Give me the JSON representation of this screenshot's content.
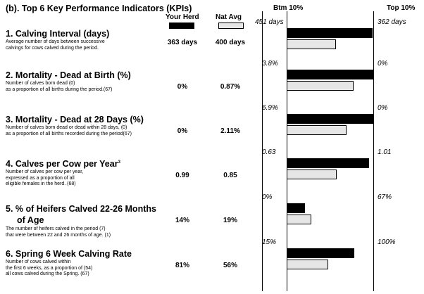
{
  "header": {
    "title": "(b). Top 6 Key Performance Indicators (KPIs)",
    "your_herd": "Your Herd",
    "nat_avg": "Nat Avg",
    "btm": "Btm 10%",
    "top": "Top 10%"
  },
  "colors": {
    "herd": "#000000",
    "nat": "#e6e6e6"
  },
  "kpis": [
    {
      "title": "1. Calving Interval (days)",
      "desc": [
        "Average number of days between successive",
        "calvings for cows calved during the period."
      ],
      "herd": "363 days",
      "nat": "400 days",
      "btm_label": "451 days",
      "top_label": "362 days"
    },
    {
      "title": "2. Mortality - Dead at Birth (%)",
      "desc": [
        "Number of calves born dead (0)",
        "as a proportion of all births during the period.(67)"
      ],
      "herd": "0%",
      "nat": "0.87%",
      "btm_label": "3.8%",
      "top_label": "0%"
    },
    {
      "title": "3. Mortality - Dead at 28 Days (%)",
      "desc": [
        "Number of calves born dead or dead within 28 days, (0)",
        "as a proportion of all births recorded during the period(67)"
      ],
      "herd": "0%",
      "nat": "2.11%",
      "btm_label": "6.9%",
      "top_label": "0%"
    },
    {
      "title": "4. Calves per Cow per Year",
      "title_sup": "3",
      "desc": [
        "Number of calves per cow per year,",
        "expressed as a proportion of all",
        "eligible females in the herd. (68)"
      ],
      "herd": "0.99",
      "nat": "0.85",
      "btm_label": "0.63",
      "top_label": "1.01"
    },
    {
      "title": "5. % of Heifers Calved 22-26 Months",
      "title2": "of Age",
      "desc": [
        "The number of heifers calved in the period  (7)",
        "that were between 22 and 26 months of age. (1)"
      ],
      "herd": "14%",
      "nat": "19%",
      "btm_label": "0%",
      "top_label": "67%"
    },
    {
      "title": "6. Spring 6 Week Calving Rate",
      "desc": [
        "Number of cows calved within",
        "the first 6 weeks, as a proportion of    (54)",
        "all cows calved during the Spring.       (67)"
      ],
      "herd": "81%",
      "nat": "56%",
      "btm_label": "15%",
      "top_label": "100%"
    }
  ],
  "chart_data": {
    "type": "bar",
    "orientation": "horizontal",
    "scale": "each KPI scaled between its Bottom 10% and Top 10% values",
    "categories": [
      "1. Calving Interval (days)",
      "2. Mortality - Dead at Birth (%)",
      "3. Mortality - Dead at 28 Days (%)",
      "4. Calves per Cow per Year",
      "5. % of Heifers Calved 22-26 Months of Age",
      "6. Spring 6 Week Calving Rate"
    ],
    "bottom_10": [
      451,
      3.8,
      6.9,
      0.63,
      0,
      15
    ],
    "top_10": [
      362,
      0,
      0,
      1.01,
      67,
      100
    ],
    "series": [
      {
        "name": "Your Herd",
        "values": [
          363,
          0,
          0,
          0.99,
          14,
          81
        ]
      },
      {
        "name": "Nat Avg",
        "values": [
          400,
          0.87,
          2.11,
          0.85,
          19,
          56
        ]
      }
    ]
  }
}
